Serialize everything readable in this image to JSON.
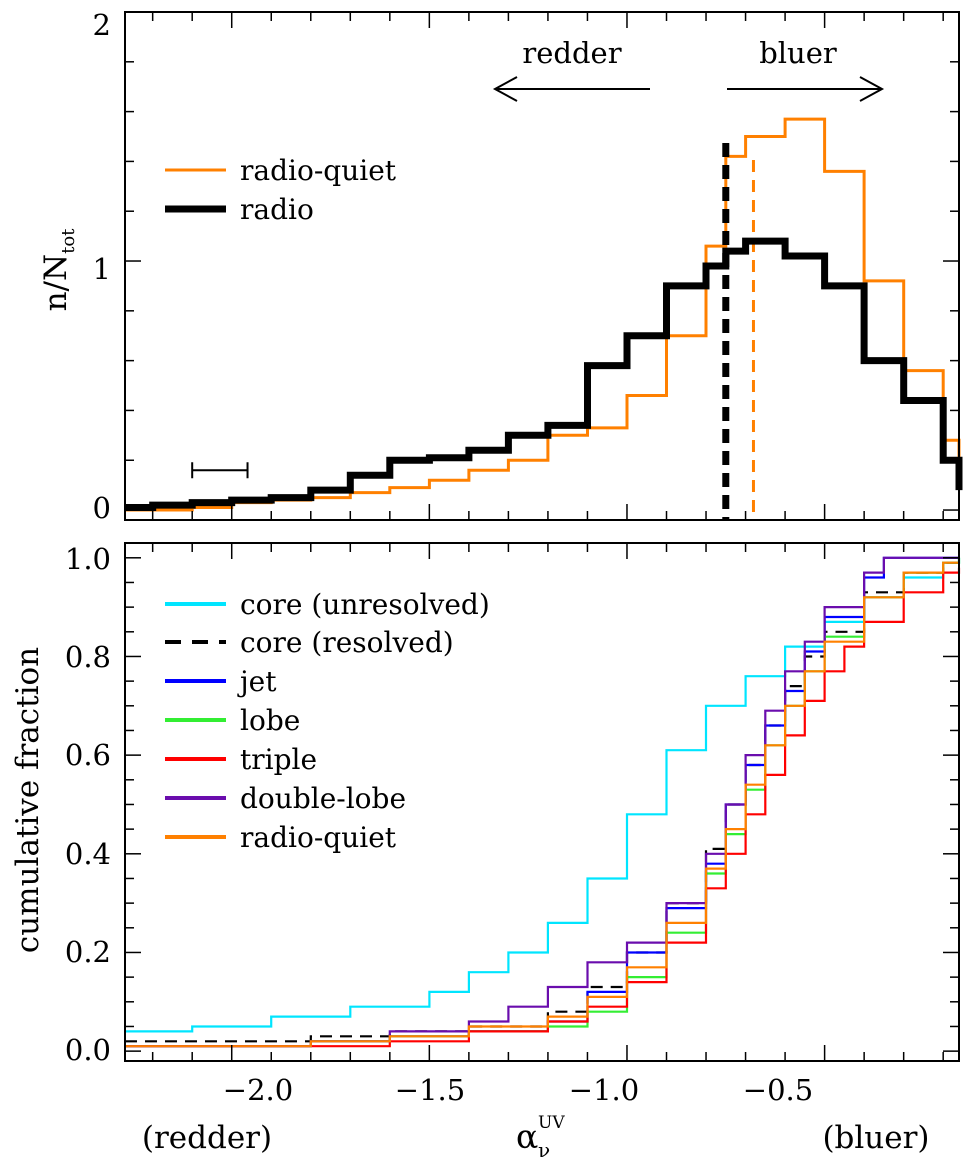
{
  "figure": {
    "top_panel": {
      "ylabel_main": "n/N",
      "ylabel_sub": "tot",
      "yticks": [
        "0",
        "1",
        "2"
      ],
      "arrow_left_label": "redder",
      "arrow_right_label": "bluer"
    },
    "bottom_panel": {
      "ylabel": "cumulative fraction",
      "yticks": [
        "0.0",
        "0.2",
        "0.4",
        "0.6",
        "0.8",
        "1.0"
      ],
      "xticks": [
        "−2.0",
        "−1.5",
        "−1.0",
        "−0.5"
      ],
      "xlabel_main": "α",
      "xlabel_sub": "ν",
      "xlabel_sup": "UV",
      "x_note_left": "(redder)",
      "x_note_right": "(bluer)"
    }
  },
  "chart_data": [
    {
      "type": "line",
      "subtype": "step-histogram",
      "xlim": [
        -2.27,
        -0.16
      ],
      "ylim": [
        -0.04,
        2.0
      ],
      "yticks": [
        0,
        1,
        2
      ],
      "xticks": [
        -2.0,
        -1.5,
        -1.0,
        -0.5
      ],
      "ylabel": "n/N_tot",
      "annotations": [
        "redder",
        "bluer"
      ],
      "error_bar": {
        "x_center": -2.03,
        "x_halfwidth": 0.07,
        "y": 0.16
      },
      "bin_edges": [
        -2.27,
        -2.2,
        -2.1,
        -2.0,
        -1.9,
        -1.8,
        -1.7,
        -1.6,
        -1.5,
        -1.4,
        -1.3,
        -1.2,
        -1.1,
        -1.0,
        -0.9,
        -0.8,
        -0.75,
        -0.7,
        -0.6,
        -0.5,
        -0.4,
        -0.3,
        -0.2,
        -0.16
      ],
      "series": [
        {
          "name": "radio-quiet",
          "color": "#ff8000",
          "values": [
            0.0,
            0.0,
            0.01,
            0.03,
            0.04,
            0.05,
            0.07,
            0.09,
            0.12,
            0.16,
            0.2,
            0.3,
            0.33,
            0.46,
            0.7,
            1.06,
            1.42,
            1.5,
            1.57,
            1.36,
            0.92,
            0.56,
            0.28,
            0.1
          ],
          "median": -0.68
        },
        {
          "name": "radio",
          "color": "#000000",
          "values": [
            0.01,
            0.02,
            0.03,
            0.04,
            0.05,
            0.08,
            0.14,
            0.2,
            0.21,
            0.24,
            0.3,
            0.34,
            0.58,
            0.7,
            0.9,
            0.98,
            1.04,
            1.08,
            1.02,
            0.9,
            0.6,
            0.44,
            0.2,
            0.08
          ],
          "median": -0.75
        }
      ]
    },
    {
      "type": "line",
      "subtype": "cumulative-distribution",
      "xlim": [
        -2.27,
        -0.16
      ],
      "ylim": [
        -0.02,
        1.03
      ],
      "xticks": [
        -2.0,
        -1.5,
        -1.0,
        -0.5
      ],
      "yticks": [
        0.0,
        0.2,
        0.4,
        0.6,
        0.8,
        1.0
      ],
      "xlabel": "α_ν^UV",
      "ylabel": "cumulative fraction",
      "legend": "top-left",
      "series": [
        {
          "name": "core (unresolved)",
          "color": "#00e5ff",
          "dashed": false,
          "x": [
            -2.27,
            -2.1,
            -1.9,
            -1.7,
            -1.5,
            -1.4,
            -1.3,
            -1.2,
            -1.1,
            -1.0,
            -0.9,
            -0.8,
            -0.7,
            -0.6,
            -0.5,
            -0.4,
            -0.3,
            -0.2,
            -0.16
          ],
          "y": [
            0.04,
            0.05,
            0.07,
            0.09,
            0.12,
            0.16,
            0.2,
            0.26,
            0.35,
            0.48,
            0.61,
            0.7,
            0.76,
            0.82,
            0.87,
            0.92,
            0.96,
            0.99,
            1.0
          ]
        },
        {
          "name": "core (resolved)",
          "color": "#000000",
          "dashed": true,
          "x": [
            -2.27,
            -2.0,
            -1.8,
            -1.6,
            -1.4,
            -1.2,
            -1.1,
            -1.0,
            -0.9,
            -0.8,
            -0.75,
            -0.7,
            -0.65,
            -0.6,
            -0.55,
            -0.5,
            -0.4,
            -0.3,
            -0.2,
            -0.16
          ],
          "y": [
            0.02,
            0.02,
            0.03,
            0.04,
            0.05,
            0.08,
            0.13,
            0.2,
            0.3,
            0.41,
            0.5,
            0.58,
            0.66,
            0.74,
            0.8,
            0.85,
            0.93,
            0.97,
            0.99,
            1.0
          ]
        },
        {
          "name": "jet",
          "color": "#0000ff",
          "dashed": false,
          "x": [
            -2.27,
            -2.0,
            -1.8,
            -1.6,
            -1.4,
            -1.2,
            -1.1,
            -1.0,
            -0.9,
            -0.8,
            -0.75,
            -0.7,
            -0.65,
            -0.6,
            -0.55,
            -0.5,
            -0.4,
            -0.35,
            -0.3,
            -0.2,
            -0.16
          ],
          "y": [
            0.01,
            0.01,
            0.02,
            0.03,
            0.04,
            0.06,
            0.12,
            0.2,
            0.29,
            0.38,
            0.5,
            0.58,
            0.66,
            0.73,
            0.81,
            0.88,
            0.96,
            1.0,
            1.0,
            1.0,
            1.0
          ]
        },
        {
          "name": "lobe",
          "color": "#33ee33",
          "dashed": false,
          "x": [
            -2.27,
            -2.0,
            -1.8,
            -1.6,
            -1.4,
            -1.2,
            -1.1,
            -1.0,
            -0.9,
            -0.8,
            -0.75,
            -0.7,
            -0.65,
            -0.6,
            -0.55,
            -0.5,
            -0.4,
            -0.3,
            -0.2,
            -0.16
          ],
          "y": [
            0.01,
            0.01,
            0.02,
            0.03,
            0.04,
            0.05,
            0.08,
            0.15,
            0.24,
            0.36,
            0.44,
            0.53,
            0.62,
            0.7,
            0.77,
            0.84,
            0.92,
            0.97,
            0.99,
            1.0
          ]
        },
        {
          "name": "triple",
          "color": "#ff0000",
          "dashed": false,
          "x": [
            -2.27,
            -2.0,
            -1.8,
            -1.6,
            -1.4,
            -1.2,
            -1.1,
            -1.0,
            -0.9,
            -0.8,
            -0.75,
            -0.7,
            -0.65,
            -0.6,
            -0.55,
            -0.5,
            -0.45,
            -0.4,
            -0.3,
            -0.2,
            -0.16
          ],
          "y": [
            0.01,
            0.01,
            0.01,
            0.02,
            0.04,
            0.06,
            0.09,
            0.14,
            0.22,
            0.33,
            0.4,
            0.48,
            0.56,
            0.64,
            0.71,
            0.77,
            0.82,
            0.87,
            0.93,
            0.97,
            0.98
          ]
        },
        {
          "name": "double-lobe",
          "color": "#6a0dad",
          "dashed": false,
          "x": [
            -2.27,
            -2.0,
            -1.8,
            -1.6,
            -1.4,
            -1.3,
            -1.2,
            -1.1,
            -1.0,
            -0.9,
            -0.8,
            -0.75,
            -0.7,
            -0.65,
            -0.6,
            -0.55,
            -0.5,
            -0.4,
            -0.35,
            -0.3,
            -0.2,
            -0.16
          ],
          "y": [
            0.01,
            0.01,
            0.02,
            0.04,
            0.06,
            0.09,
            0.13,
            0.18,
            0.22,
            0.3,
            0.4,
            0.5,
            0.6,
            0.69,
            0.77,
            0.83,
            0.9,
            0.97,
            1.0,
            1.0,
            1.0,
            1.0
          ]
        },
        {
          "name": "radio-quiet",
          "color": "#ff8000",
          "dashed": false,
          "x": [
            -2.27,
            -2.0,
            -1.8,
            -1.6,
            -1.4,
            -1.2,
            -1.1,
            -1.0,
            -0.9,
            -0.8,
            -0.75,
            -0.7,
            -0.65,
            -0.6,
            -0.55,
            -0.5,
            -0.4,
            -0.3,
            -0.2,
            -0.16
          ],
          "y": [
            0.01,
            0.01,
            0.02,
            0.03,
            0.05,
            0.07,
            0.11,
            0.17,
            0.26,
            0.37,
            0.45,
            0.54,
            0.62,
            0.7,
            0.77,
            0.83,
            0.92,
            0.97,
            0.99,
            0.99
          ]
        }
      ]
    }
  ]
}
